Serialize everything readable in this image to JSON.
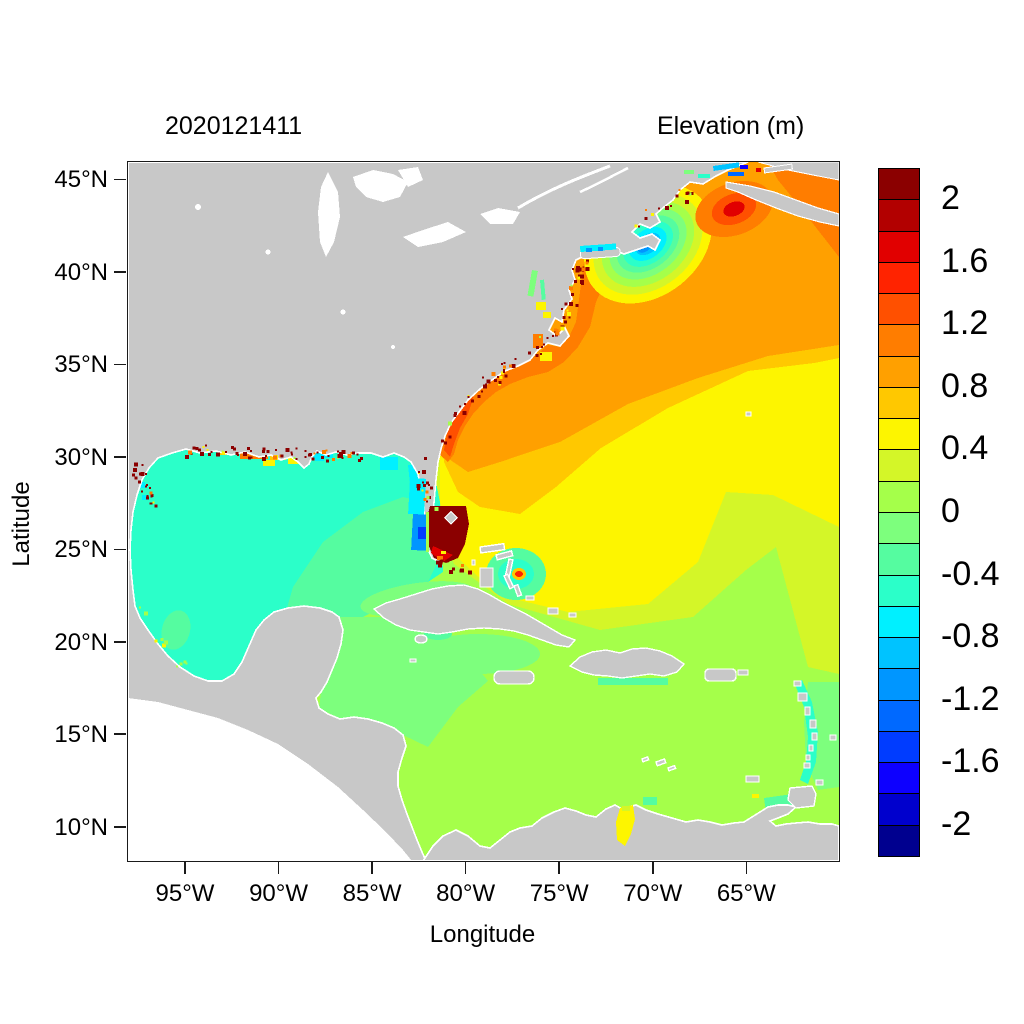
{
  "map": {
    "land_color": "#c8c8c8",
    "outside_color": "#ffffff",
    "coast_fringe": "#ffffff",
    "border_color": "#1a1a1a",
    "background": "#ffffff"
  },
  "chart_data": {
    "type": "heatmap",
    "title": "Elevation (m)",
    "timestamp": "2020121411",
    "xlabel": "Longitude",
    "ylabel": "Latitude",
    "lon_range": [
      -98.1,
      -60.1
    ],
    "lat_range": [
      8.2,
      46.0
    ],
    "x_ticks": [
      {
        "label": "95°W",
        "value": -95
      },
      {
        "label": "90°W",
        "value": -90
      },
      {
        "label": "85°W",
        "value": -85
      },
      {
        "label": "80°W",
        "value": -80
      },
      {
        "label": "75°W",
        "value": -75
      },
      {
        "label": "70°W",
        "value": -70
      },
      {
        "label": "65°W",
        "value": -65
      }
    ],
    "y_ticks": [
      {
        "label": "45°N",
        "value": 45
      },
      {
        "label": "40°N",
        "value": 40
      },
      {
        "label": "35°N",
        "value": 35
      },
      {
        "label": "30°N",
        "value": 30
      },
      {
        "label": "25°N",
        "value": 25
      },
      {
        "label": "20°N",
        "value": 20
      },
      {
        "label": "15°N",
        "value": 15
      },
      {
        "label": "10°N",
        "value": 10
      }
    ],
    "colorbar": {
      "min": -2.2,
      "max": 2.2,
      "step": 0.2,
      "colors": [
        "#00008f",
        "#0000cd",
        "#0d00ff",
        "#003cff",
        "#0069ff",
        "#0096ff",
        "#00c3ff",
        "#00f0ff",
        "#2bffc9",
        "#55fca0",
        "#7dff7d",
        "#a5ff4a",
        "#d4f628",
        "#fdf500",
        "#ffc800",
        "#ffa000",
        "#ff7d00",
        "#ff5000",
        "#ff2300",
        "#e10000",
        "#b20000",
        "#8b0000"
      ],
      "ticks": [
        {
          "label": "2",
          "value": 2.0
        },
        {
          "label": "1.6",
          "value": 1.6
        },
        {
          "label": "1.2",
          "value": 1.2
        },
        {
          "label": "0.8",
          "value": 0.8
        },
        {
          "label": "0.4",
          "value": 0.4
        },
        {
          "label": "0",
          "value": 0.0
        },
        {
          "label": "-0.4",
          "value": -0.4
        },
        {
          "label": "-0.8",
          "value": -0.8
        },
        {
          "label": "-1.2",
          "value": -1.2
        },
        {
          "label": "-1.6",
          "value": -1.6
        },
        {
          "label": "-2",
          "value": -2.0
        }
      ]
    },
    "regions": [
      {
        "name": "Gulf of Mexico basin",
        "approx_value": -0.5
      },
      {
        "name": "Southeast-central Gulf of Mexico",
        "approx_value": -0.3
      },
      {
        "name": "Bay of Campeche",
        "approx_value": -0.35
      },
      {
        "name": "Northwest Atlantic offshore NE US",
        "approx_value": 0.9
      },
      {
        "name": "Scotian shelf / top-right corner",
        "approx_value": 1.1
      },
      {
        "name": "Central Atlantic band",
        "approx_value": 0.5
      },
      {
        "name": "Subtropical Atlantic southeast band",
        "approx_value": 0.3
      },
      {
        "name": "Caribbean Sea",
        "approx_value": 0.1
      },
      {
        "name": "Western Caribbean",
        "approx_value": -0.1
      },
      {
        "name": "South Florida flooded zone",
        "approx_value": 2.2
      },
      {
        "name": "Gulf of Maine / Cape Cod low",
        "approx_value": -1.1
      },
      {
        "name": "Bay of Fundy high",
        "approx_value": 1.7
      },
      {
        "name": "Southeast US coastal band",
        "approx_value": 1.2
      },
      {
        "name": "Bahamas cold eddy",
        "approx_value": -0.5
      },
      {
        "name": "Lake Maracaibo inlet",
        "approx_value": 0.5
      }
    ]
  }
}
